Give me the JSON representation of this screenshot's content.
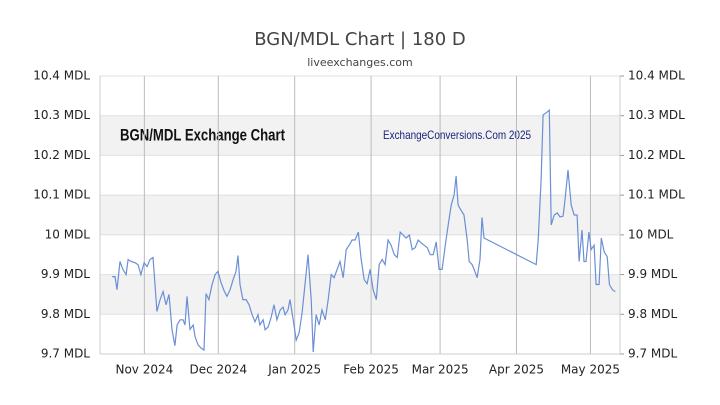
{
  "chart_data": {
    "type": "line",
    "title": "BGN/MDL Chart | 180 D",
    "subtitle": "liveexchanges.com",
    "annotations": [
      "BGN/MDL Exchange Chart",
      "ExchangeConversions.Com 2025"
    ],
    "xlim": [
      0,
      211
    ],
    "xticks": [
      {
        "value": 18,
        "label": "Nov 2024"
      },
      {
        "value": 48,
        "label": "Dec 2024"
      },
      {
        "value": 79,
        "label": "Jan 2025"
      },
      {
        "value": 110,
        "label": "Feb 2025"
      },
      {
        "value": 138,
        "label": "Mar 2025"
      },
      {
        "value": 169,
        "label": "Apr 2025"
      },
      {
        "value": 199,
        "label": "May 2025"
      }
    ],
    "ylim": [
      9.7,
      10.4
    ],
    "yticks": [
      {
        "value": 9.7,
        "label": "9.7 MDL"
      },
      {
        "value": 9.8,
        "label": "9.8 MDL"
      },
      {
        "value": 9.9,
        "label": "9.9 MDL"
      },
      {
        "value": 10,
        "label": "10 MDL"
      },
      {
        "value": 10.1,
        "label": "10.1 MDL"
      },
      {
        "value": 10.2,
        "label": "10.2 MDL"
      },
      {
        "value": 10.3,
        "label": "10.3 MDL"
      },
      {
        "value": 10.4,
        "label": "10.4 MDL"
      }
    ],
    "grid": true,
    "series": [
      {
        "name": "BGN/MDL",
        "color": "#6b8fd6",
        "x": [
          4.9,
          6.1,
          6.9,
          8.1,
          9.3,
          10.6,
          11.4,
          12.6,
          14.2,
          15.4,
          16.6,
          17.9,
          19.1,
          20.3,
          21.5,
          22.3,
          23.1,
          24.4,
          25.6,
          26.8,
          28.0,
          29.2,
          30.4,
          31.3,
          32.5,
          33.7,
          34.5,
          35.3,
          36.5,
          37.8,
          38.6,
          39.8,
          41.0,
          42.2,
          43.0,
          44.2,
          45.5,
          46.7,
          47.9,
          49.1,
          50.3,
          51.5,
          52.8,
          54.0,
          55.2,
          56.0,
          56.8,
          58.0,
          59.3,
          60.5,
          61.7,
          62.9,
          64.1,
          64.9,
          66.2,
          67.0,
          68.2,
          69.4,
          70.6,
          71.8,
          73.1,
          74.3,
          75.1,
          76.3,
          77.1,
          78.4,
          79.6,
          80.8,
          82.0,
          83.2,
          84.4,
          85.7,
          86.5,
          87.7,
          88.9,
          90.1,
          91.4,
          92.6,
          93.8,
          95.0,
          96.2,
          97.4,
          98.7,
          99.9,
          101.1,
          102.3,
          103.5,
          104.8,
          106.0,
          107.2,
          108.4,
          109.6,
          110.8,
          112.1,
          113.3,
          114.5,
          115.7,
          116.9,
          118.1,
          119.4,
          120.6,
          121.8,
          123.0,
          124.2,
          125.5,
          126.7,
          127.9,
          129.1,
          130.3,
          131.5,
          132.8,
          134.0,
          135.2,
          136.4,
          137.6,
          138.8,
          140.1,
          141.3,
          142.5,
          143.7,
          144.5,
          145.3,
          146.5,
          147.7,
          149.0,
          149.8,
          151.0,
          151.8,
          153.0,
          154.2,
          155.0,
          155.8,
          177.0,
          177.8,
          179.0,
          179.8,
          181.0,
          182.3,
          183.1,
          184.3,
          185.5,
          186.7,
          187.9,
          188.7,
          189.9,
          191.2,
          192.4,
          193.6,
          194.4,
          195.6,
          196.4,
          197.2,
          198.4,
          199.3,
          200.5,
          201.3,
          202.5,
          203.4,
          204.6,
          205.8,
          206.7,
          207.9,
          209.1
        ],
        "values": [
          9.895,
          9.895,
          9.862,
          9.933,
          9.913,
          9.9,
          9.938,
          9.933,
          9.93,
          9.925,
          9.9,
          9.93,
          9.92,
          9.938,
          9.943,
          9.875,
          9.807,
          9.837,
          9.857,
          9.824,
          9.85,
          9.762,
          9.721,
          9.773,
          9.786,
          9.786,
          9.773,
          9.845,
          9.762,
          9.773,
          9.743,
          9.723,
          9.715,
          9.71,
          9.852,
          9.837,
          9.875,
          9.9,
          9.908,
          9.88,
          9.86,
          9.845,
          9.862,
          9.887,
          9.908,
          9.948,
          9.875,
          9.837,
          9.837,
          9.824,
          9.799,
          9.781,
          9.799,
          9.773,
          9.786,
          9.761,
          9.768,
          9.791,
          9.824,
          9.786,
          9.811,
          9.818,
          9.799,
          9.811,
          9.837,
          9.786,
          9.735,
          9.753,
          9.804,
          9.875,
          9.95,
          9.837,
          9.705,
          9.799,
          9.773,
          9.811,
          9.786,
          9.837,
          9.9,
          9.892,
          9.913,
          9.933,
          9.892,
          9.963,
          9.974,
          9.987,
          9.987,
          10.007,
          9.938,
          9.887,
          9.877,
          9.913,
          9.862,
          9.837,
          9.925,
          9.938,
          9.925,
          9.987,
          9.974,
          9.95,
          9.943,
          10.007,
          10.0,
          9.992,
          10.0,
          9.963,
          9.968,
          9.987,
          9.98,
          9.974,
          9.968,
          9.95,
          9.95,
          9.982,
          9.913,
          9.913,
          9.974,
          10.025,
          10.075,
          10.1,
          10.148,
          10.075,
          10.062,
          10.05,
          9.987,
          9.933,
          9.925,
          9.913,
          9.892,
          9.938,
          10.044,
          9.992,
          9.925,
          9.987,
          10.138,
          10.302,
          10.307,
          10.314,
          10.025,
          10.05,
          10.055,
          10.045,
          10.047,
          10.088,
          10.163,
          10.075,
          10.05,
          10.05,
          9.933,
          10.012,
          9.933,
          9.933,
          10.007,
          9.963,
          9.974,
          9.875,
          9.875,
          9.992,
          9.957,
          9.945,
          9.875,
          9.862,
          9.857
        ]
      }
    ]
  }
}
